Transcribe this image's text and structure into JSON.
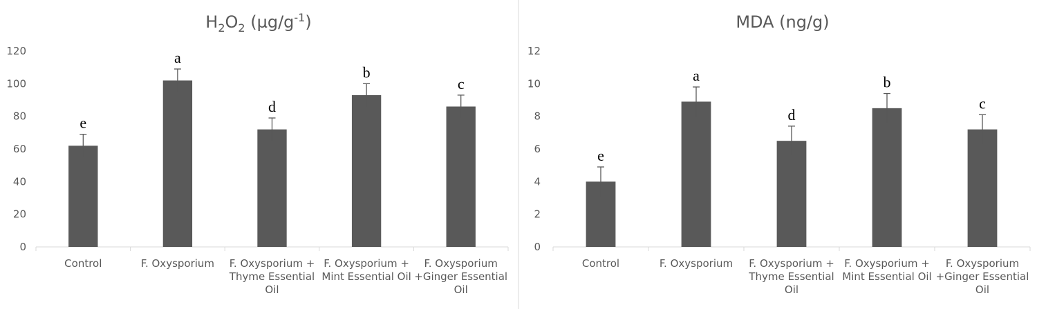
{
  "chart_data": [
    {
      "type": "bar",
      "title_main": "H",
      "title_sub1": "2",
      "title_mid": "O",
      "title_sub2": "2",
      "title_rest": " (µg/g",
      "title_sup": "-1",
      "title_end": ")",
      "categories": [
        "Control",
        "F. Oxysporium",
        "F. Oxysporium + Thyme Essential Oil",
        "F. Oxysporium + Mint Essential Oil",
        "F. Oxysporium +Ginger Essential Oil"
      ],
      "category_label_lines": [
        [
          "Control"
        ],
        [
          "F. Oxysporium"
        ],
        [
          "F. Oxysporium +",
          "Thyme Essential",
          "Oil"
        ],
        [
          "F. Oxysporium +",
          "Mint Essential Oil"
        ],
        [
          "F. Oxysporium",
          "+Ginger Essential",
          "Oil"
        ]
      ],
      "values": [
        62,
        102,
        72,
        93,
        86
      ],
      "errors": [
        7,
        7,
        7,
        7,
        7
      ],
      "significance_letters": [
        "e",
        "a",
        "d",
        "b",
        "c"
      ],
      "ylim": [
        0,
        120
      ],
      "yticks": [
        0,
        20,
        40,
        60,
        80,
        100,
        120
      ],
      "xlabel": "",
      "ylabel": "",
      "grid": false,
      "bar_color": "#595959"
    },
    {
      "type": "bar",
      "title": "MDA (ng/g)",
      "categories": [
        "Control",
        "F. Oxysporium",
        "F. Oxysporium + Thyme Essential Oil",
        "F. Oxysporium + Mint Essential Oil",
        "F. Oxysporium +Ginger Essential Oil"
      ],
      "category_label_lines": [
        [
          "Control"
        ],
        [
          "F. Oxysporium"
        ],
        [
          "F. Oxysporium +",
          "Thyme Essential",
          "Oil"
        ],
        [
          "F. Oxysporium +",
          "Mint Essential Oil"
        ],
        [
          "F. Oxysporium",
          "+Ginger Essential",
          "Oil"
        ]
      ],
      "values": [
        4,
        8.9,
        6.5,
        8.5,
        7.2
      ],
      "errors": [
        0.9,
        0.9,
        0.9,
        0.9,
        0.9
      ],
      "significance_letters": [
        "e",
        "a",
        "d",
        "b",
        "c"
      ],
      "ylim": [
        0,
        12
      ],
      "yticks": [
        0,
        2,
        4,
        6,
        8,
        10,
        12
      ],
      "xlabel": "",
      "ylabel": "",
      "grid": false,
      "bar_color": "#595959"
    }
  ]
}
